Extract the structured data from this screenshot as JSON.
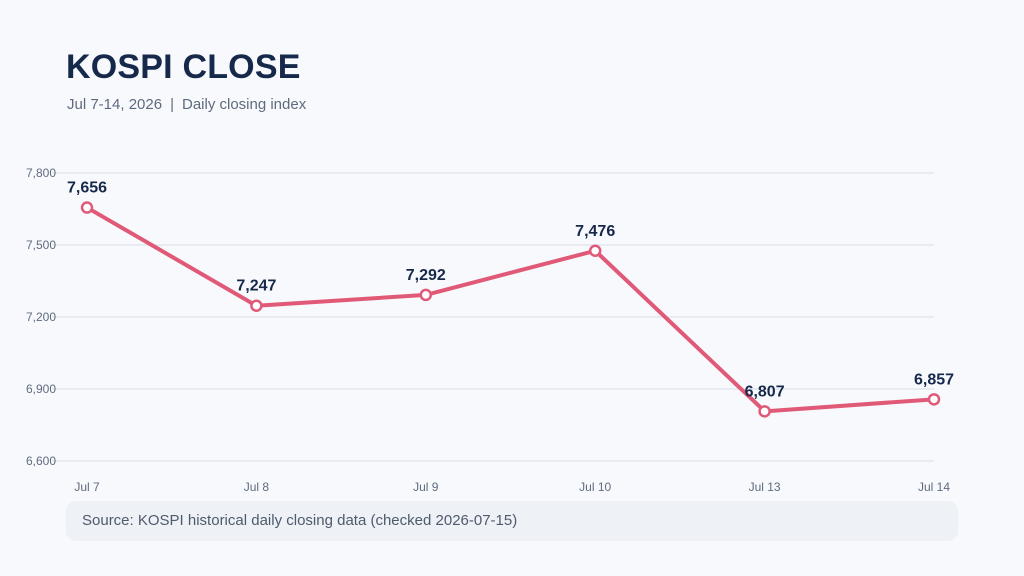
{
  "header": {
    "title": "KOSPI CLOSE",
    "subtitle_date": "Jul 7-14, 2026",
    "subtitle_separator": "|",
    "subtitle_desc": "Daily closing index"
  },
  "footer": {
    "source": "Source: KOSPI historical daily closing data (checked 2026-07-15)"
  },
  "colors": {
    "line": "#e05a78",
    "grid": "#d9dde6",
    "label": "#17294a",
    "tick": "#5f6b7d"
  },
  "chart_data": {
    "type": "line",
    "categories": [
      "Jul 7",
      "Jul 8",
      "Jul 9",
      "Jul 10",
      "Jul 13",
      "Jul 14"
    ],
    "series": [
      {
        "values": [
          7656,
          7247,
          7292,
          7476,
          6807,
          6857
        ],
        "labels": [
          "7,656",
          "7,247",
          "7,292",
          "7,476",
          "6,807",
          "6,857"
        ]
      }
    ],
    "yticks": [
      6600,
      6900,
      7200,
      7500,
      7800
    ],
    "ytick_labels": [
      "6,600",
      "6,900",
      "7,200",
      "7,500",
      "7,800"
    ],
    "ylim": [
      6600,
      7800
    ],
    "grid": true,
    "legend": "none"
  }
}
